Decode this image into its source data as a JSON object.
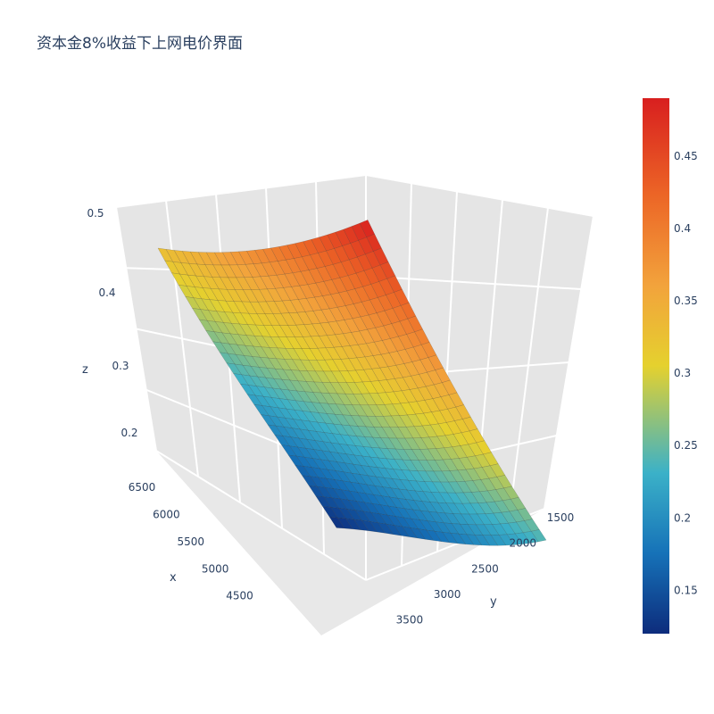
{
  "chart_data": {
    "type": "surface",
    "title": "资本金8%收益下上网电价界面",
    "axes": {
      "x": {
        "title": "x",
        "range": [
          4200,
          6500
        ],
        "ticks": [
          4500,
          5000,
          5500,
          6000,
          6500
        ]
      },
      "y": {
        "title": "y",
        "range": [
          1500,
          3700
        ],
        "ticks": [
          1500,
          2000,
          2500,
          3000,
          3500
        ]
      },
      "z": {
        "title": "z",
        "range": [
          0.13,
          0.5
        ],
        "ticks": [
          0.2,
          0.3,
          0.4,
          0.5
        ]
      }
    },
    "surface": {
      "description_corners": [
        {
          "x": 4200,
          "y": 1500,
          "z": 0.49
        },
        {
          "x": 6500,
          "y": 1500,
          "z": 0.33
        },
        {
          "x": 4200,
          "y": 3700,
          "z": 0.24
        },
        {
          "x": 6500,
          "y": 3700,
          "z": 0.12
        }
      ],
      "z_min": 0.12,
      "z_max": 0.49
    },
    "colorbar": {
      "ticks": [
        "0.15",
        "0.2",
        "0.25",
        "0.3",
        "0.35",
        "0.4",
        "0.45"
      ],
      "range": [
        0.12,
        0.49
      ],
      "colors": [
        "#0d2c7c",
        "#1672b8",
        "#3bb1c8",
        "#e5d12e",
        "#f2a33c",
        "#ec6526",
        "#d81f1f"
      ]
    },
    "grid": true
  }
}
